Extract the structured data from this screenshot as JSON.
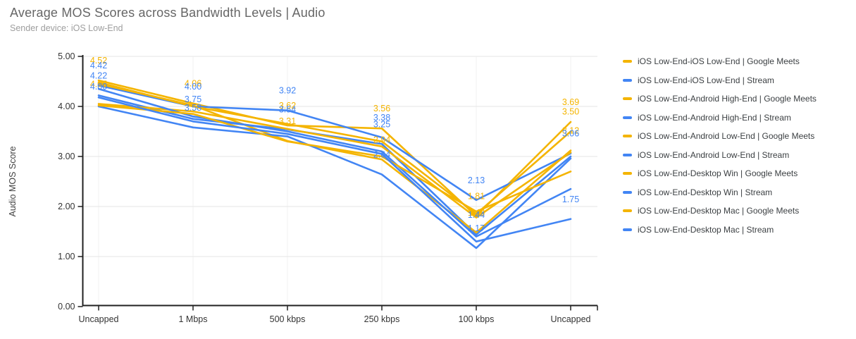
{
  "title": "Average MOS Scores across Bandwidth Levels | Audio",
  "subtitle": "Sender device: iOS Low-End",
  "colors": {
    "google_meets": "#F4B400",
    "stream": "#4285F4",
    "title_text": "#666666",
    "subtitle_text": "#9E9E9E",
    "axis_line": "#212121",
    "gridline": "#E6E6E6",
    "minor_vline": "#F1F1F1",
    "tick_label": "#333333",
    "legend_text": "#3C4043"
  },
  "chart_data": {
    "type": "line",
    "title": "Average MOS Scores across Bandwidth Levels | Audio",
    "subtitle": "Sender device: iOS Low-End",
    "xlabel": "",
    "ylabel": "Audio MOS Score",
    "categories": [
      "Uncapped",
      "1 Mbps",
      "500 kbps",
      "250 kbps",
      "100 kbps",
      "Uncapped"
    ],
    "ylim": [
      0,
      5
    ],
    "ytick_labels": [
      "0.00",
      "1.00",
      "2.00",
      "3.00",
      "4.00",
      "5.00"
    ],
    "grid": true,
    "legend_position": "right",
    "series": [
      {
        "name": "iOS Low-End-iOS Low-End | Google Meets",
        "color": "google_meets",
        "values": [
          4.52,
          4.06,
          3.62,
          3.56,
          1.81,
          3.69
        ]
      },
      {
        "name": "iOS Low-End-iOS Low-End | Stream",
        "color": "stream",
        "values": [
          4.42,
          4.0,
          3.92,
          3.38,
          2.13,
          3.06
        ]
      },
      {
        "name": "iOS Low-End-Android High-End | Google Meets",
        "color": "google_meets",
        "values": [
          4.48,
          4.0,
          3.65,
          3.3,
          1.85,
          3.5
        ]
      },
      {
        "name": "iOS Low-End-Android High-End | Stream",
        "color": "stream",
        "values": [
          4.22,
          3.75,
          3.54,
          3.25,
          1.44,
          3.0
        ]
      },
      {
        "name": "iOS Low-End-Android Low-End | Google Meets",
        "color": "google_meets",
        "values": [
          4.45,
          4.02,
          3.31,
          2.94,
          1.48,
          3.12
        ]
      },
      {
        "name": "iOS Low-End-Android Low-End | Stream",
        "color": "stream",
        "values": [
          4.0,
          3.58,
          3.4,
          2.64,
          1.17,
          2.96
        ]
      },
      {
        "name": "iOS Low-End-Desktop Win | Google Meets",
        "color": "google_meets",
        "values": [
          4.05,
          3.9,
          3.55,
          3.2,
          1.78,
          3.08
        ]
      },
      {
        "name": "iOS Low-End-Desktop Win | Stream",
        "color": "stream",
        "values": [
          4.35,
          3.8,
          3.5,
          3.1,
          1.4,
          2.35
        ]
      },
      {
        "name": "iOS Low-End-Desktop Mac | Google Meets",
        "color": "google_meets",
        "values": [
          4.02,
          3.85,
          3.3,
          3.0,
          1.9,
          2.7
        ]
      },
      {
        "name": "iOS Low-End-Desktop Mac | Stream",
        "color": "stream",
        "values": [
          4.18,
          3.7,
          3.45,
          3.05,
          1.3,
          1.75
        ]
      }
    ],
    "visible_labels": [
      {
        "c": 0,
        "v": 4.52,
        "t": "4.52",
        "s": "google_meets"
      },
      {
        "c": 0,
        "v": 4.05,
        "t": "4.05",
        "s": "google_meets"
      },
      {
        "c": 1,
        "v": 4.06,
        "t": "4.06",
        "s": "google_meets"
      },
      {
        "c": 2,
        "v": 3.62,
        "t": "3.62",
        "s": "google_meets"
      },
      {
        "c": 2,
        "v": 3.31,
        "t": "3.31",
        "s": "google_meets"
      },
      {
        "c": 3,
        "v": 3.56,
        "t": "3.56",
        "s": "google_meets"
      },
      {
        "c": 3,
        "v": 2.94,
        "t": "2.94",
        "s": "google_meets"
      },
      {
        "c": 4,
        "v": 1.81,
        "t": "1.81",
        "s": "google_meets"
      },
      {
        "c": 4,
        "v": 1.48,
        "t": "1.48",
        "s": "google_meets"
      },
      {
        "c": 5,
        "v": 3.69,
        "t": "3.69",
        "s": "google_meets"
      },
      {
        "c": 5,
        "v": 3.5,
        "t": "3.50",
        "s": "google_meets"
      },
      {
        "c": 5,
        "v": 3.12,
        "t": "3.12",
        "s": "google_meets"
      },
      {
        "c": 0,
        "v": 4.42,
        "t": "4.42",
        "s": "stream"
      },
      {
        "c": 0,
        "v": 4.22,
        "t": "4.22",
        "s": "stream"
      },
      {
        "c": 0,
        "v": 4.0,
        "t": "4.00",
        "s": "stream"
      },
      {
        "c": 1,
        "v": 4.0,
        "t": "4.00",
        "s": "stream"
      },
      {
        "c": 1,
        "v": 3.75,
        "t": "3.75",
        "s": "stream"
      },
      {
        "c": 1,
        "v": 3.58,
        "t": "3.58",
        "s": "stream"
      },
      {
        "c": 2,
        "v": 3.92,
        "t": "3.92",
        "s": "stream"
      },
      {
        "c": 2,
        "v": 3.54,
        "t": "3.54",
        "s": "stream"
      },
      {
        "c": 3,
        "v": 3.38,
        "t": "3.38",
        "s": "stream"
      },
      {
        "c": 3,
        "v": 3.25,
        "t": "3.25",
        "s": "stream"
      },
      {
        "c": 3,
        "v": 2.64,
        "t": "2.64",
        "s": "stream"
      },
      {
        "c": 4,
        "v": 2.13,
        "t": "2.13",
        "s": "stream"
      },
      {
        "c": 4,
        "v": 1.44,
        "t": "1.44",
        "s": "stream"
      },
      {
        "c": 4,
        "v": 1.17,
        "t": "1.17",
        "s": "stream"
      },
      {
        "c": 5,
        "v": 3.06,
        "t": "3.06",
        "s": "stream"
      },
      {
        "c": 5,
        "v": 1.75,
        "t": "1.75",
        "s": "stream"
      }
    ]
  }
}
